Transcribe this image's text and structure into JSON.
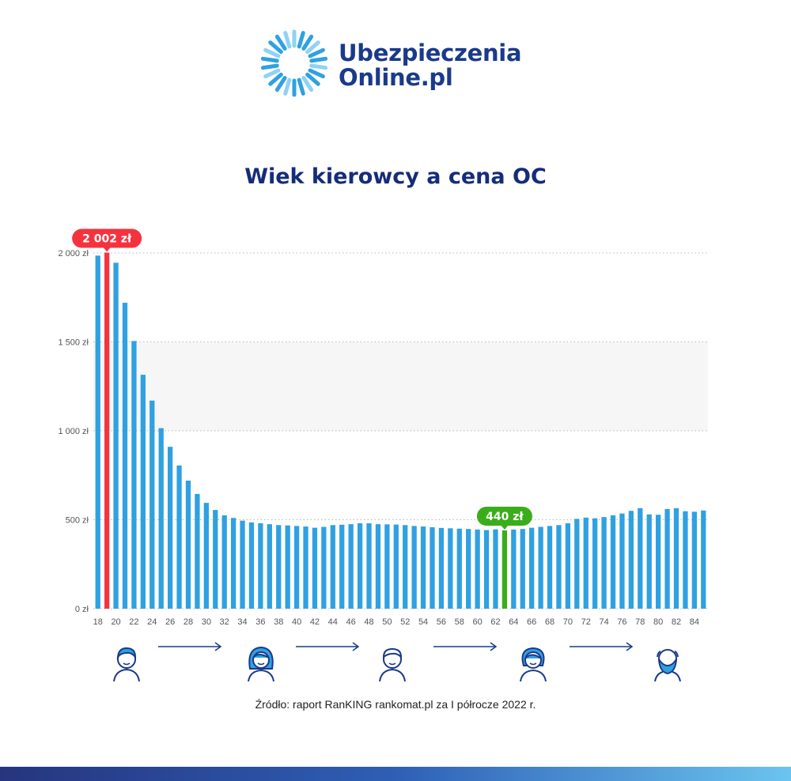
{
  "brand": {
    "line1": "Ubezpieczenia",
    "line2": "Online.pl",
    "colors": {
      "primary": "#1a3a8a",
      "accent": "#2fa1e1"
    }
  },
  "source_text": "Źródło: raport RanKING rankomat.pl za I półrocze 2022 r.",
  "avatars": [
    "young-man-icon",
    "young-woman-icon",
    "man-icon",
    "woman-icon",
    "senior-bearded-man-icon"
  ],
  "chart_data": {
    "type": "bar",
    "title": "Wiek kierowcy a cena OC",
    "xlabel": "",
    "ylabel": "",
    "ylim": [
      0,
      2000
    ],
    "yticks": [
      0,
      500,
      1000,
      1500,
      2000
    ],
    "ytick_labels": [
      "0 zł",
      "500 zł",
      "1 000 zł",
      "1 500 zł",
      "2 000 zł"
    ],
    "grid": true,
    "x": [
      18,
      19,
      20,
      21,
      22,
      23,
      24,
      25,
      26,
      27,
      28,
      29,
      30,
      31,
      32,
      33,
      34,
      35,
      36,
      37,
      38,
      39,
      40,
      41,
      42,
      43,
      44,
      45,
      46,
      47,
      48,
      49,
      50,
      51,
      52,
      53,
      54,
      55,
      56,
      57,
      58,
      59,
      60,
      61,
      62,
      63,
      64,
      65,
      66,
      67,
      68,
      69,
      70,
      71,
      72,
      73,
      74,
      75,
      76,
      77,
      78,
      79,
      80,
      81,
      82,
      83,
      84,
      85
    ],
    "xtick_labels": [
      "18",
      "20",
      "22",
      "24",
      "26",
      "28",
      "30",
      "32",
      "34",
      "36",
      "38",
      "40",
      "42",
      "44",
      "46",
      "48",
      "50",
      "52",
      "54",
      "56",
      "58",
      "60",
      "62",
      "64",
      "66",
      "68",
      "70",
      "72",
      "74",
      "76",
      "78",
      "80",
      "82",
      "84"
    ],
    "values": [
      1985,
      2002,
      1945,
      1720,
      1505,
      1315,
      1170,
      1015,
      910,
      805,
      720,
      645,
      595,
      555,
      525,
      510,
      495,
      485,
      480,
      475,
      470,
      468,
      465,
      462,
      455,
      460,
      470,
      472,
      475,
      480,
      480,
      475,
      474,
      473,
      470,
      465,
      462,
      458,
      454,
      452,
      450,
      448,
      445,
      442,
      446,
      440,
      445,
      448,
      455,
      460,
      465,
      470,
      480,
      505,
      512,
      508,
      515,
      525,
      535,
      550,
      565,
      530,
      528,
      560,
      565,
      548,
      545,
      552
    ],
    "colors": {
      "bar": "#2fa1e1",
      "max": "#f5333f",
      "min": "#3aad1b"
    },
    "annotations": [
      {
        "x": 19,
        "label": "2 002 zł",
        "color": "#f5333f"
      },
      {
        "x": 63,
        "label": "440 zł",
        "color": "#3aad1b"
      }
    ]
  }
}
